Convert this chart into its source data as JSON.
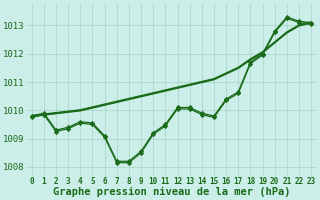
{
  "xlabel": "Graphe pression niveau de la mer (hPa)",
  "bg_color": "#cceee8",
  "grid_color": "#aad8cc",
  "line_color": "#1a6b1a",
  "x": [
    0,
    1,
    2,
    3,
    4,
    5,
    6,
    7,
    8,
    9,
    10,
    11,
    12,
    13,
    14,
    15,
    16,
    17,
    18,
    19,
    20,
    21,
    22,
    23
  ],
  "line_wavy1": [
    1009.8,
    1009.9,
    1009.3,
    1009.4,
    1009.6,
    1009.55,
    1009.1,
    1008.2,
    1008.2,
    1008.55,
    1009.2,
    1009.5,
    1010.1,
    1010.1,
    1009.9,
    1009.8,
    1010.4,
    1010.65,
    1011.7,
    1012.0,
    1012.8,
    1013.3,
    1013.15,
    1013.1
  ],
  "line_wavy2": [
    1009.75,
    1009.85,
    1009.25,
    1009.35,
    1009.55,
    1009.5,
    1009.05,
    1008.15,
    1008.15,
    1008.5,
    1009.15,
    1009.45,
    1010.05,
    1010.05,
    1009.85,
    1009.75,
    1010.35,
    1010.6,
    1011.65,
    1011.95,
    1012.75,
    1013.25,
    1013.1,
    1013.05
  ],
  "line_straight1": [
    1009.8,
    1009.85,
    1009.9,
    1009.95,
    1010.0,
    1010.1,
    1010.2,
    1010.3,
    1010.4,
    1010.5,
    1010.6,
    1010.7,
    1010.8,
    1010.9,
    1011.0,
    1011.1,
    1011.3,
    1011.5,
    1011.8,
    1012.05,
    1012.4,
    1012.75,
    1013.0,
    1013.1
  ],
  "line_straight2": [
    1009.82,
    1009.87,
    1009.92,
    1009.97,
    1010.02,
    1010.12,
    1010.22,
    1010.32,
    1010.42,
    1010.52,
    1010.62,
    1010.72,
    1010.82,
    1010.92,
    1011.02,
    1011.12,
    1011.32,
    1011.52,
    1011.82,
    1012.07,
    1012.42,
    1012.77,
    1013.02,
    1013.12
  ],
  "line_straight3": [
    1009.78,
    1009.83,
    1009.88,
    1009.93,
    1009.98,
    1010.08,
    1010.18,
    1010.28,
    1010.38,
    1010.48,
    1010.58,
    1010.68,
    1010.78,
    1010.88,
    1010.98,
    1011.08,
    1011.28,
    1011.48,
    1011.78,
    1012.03,
    1012.38,
    1012.73,
    1012.98,
    1013.08
  ],
  "ylim": [
    1007.7,
    1013.8
  ],
  "yticks": [
    1008,
    1009,
    1010,
    1011,
    1012,
    1013
  ],
  "xticks": [
    0,
    1,
    2,
    3,
    4,
    5,
    6,
    7,
    8,
    9,
    10,
    11,
    12,
    13,
    14,
    15,
    16,
    17,
    18,
    19,
    20,
    21,
    22,
    23
  ],
  "marker": "D",
  "markersize": 2.2,
  "linewidth": 0.9,
  "xlabel_fontsize": 7.5,
  "ytick_fontsize": 6.5,
  "xtick_fontsize": 5.5
}
